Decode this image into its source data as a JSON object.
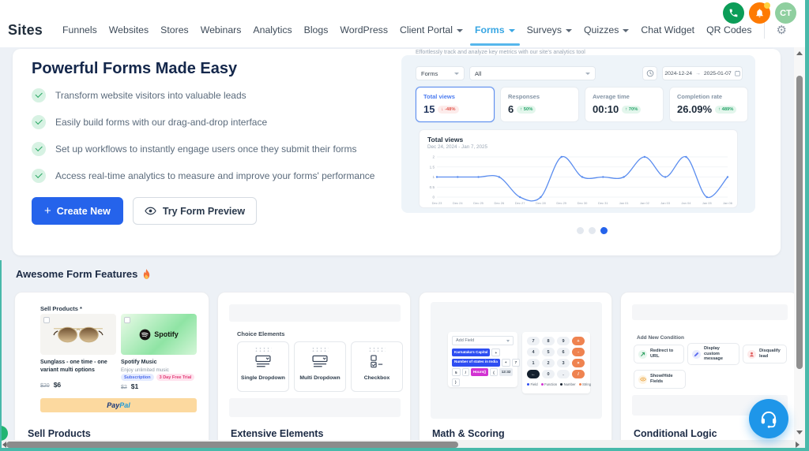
{
  "colors": {
    "accent_blue": "#2563eb",
    "nav_active": "#38a6e3",
    "teal_edge": "#49b9aa",
    "positive": "#27a46a",
    "negative": "#e25950",
    "chart_line": "#5b8def",
    "support_fab": "#1e96e9"
  },
  "icons": {
    "settings_gear": "⚙",
    "create_plus": "+",
    "date_arrow": "→"
  },
  "header": {
    "brand": "Sites",
    "avatar_initials": "CT",
    "nav": [
      {
        "label": "Funnels"
      },
      {
        "label": "Websites"
      },
      {
        "label": "Stores"
      },
      {
        "label": "Webinars"
      },
      {
        "label": "Analytics"
      },
      {
        "label": "Blogs"
      },
      {
        "label": "WordPress"
      },
      {
        "label": "Client Portal",
        "dropdown": true
      },
      {
        "label": "Forms",
        "dropdown": true,
        "active": true
      },
      {
        "label": "Surveys",
        "dropdown": true
      },
      {
        "label": "Quizzes",
        "dropdown": true
      },
      {
        "label": "Chat Widget"
      },
      {
        "label": "QR Codes"
      }
    ]
  },
  "hero": {
    "title": "Powerful Forms Made Easy",
    "bullets": [
      "Transform website visitors into valuable leads",
      "Easily build forms with our drag-and-drop interface",
      "Set up workflows to instantly engage users once they submit their forms",
      "Access real-time analytics to measure and improve your forms' performance"
    ],
    "create_button": "Create New",
    "preview_button": "Try Form Preview"
  },
  "analytics": {
    "tagline": "Effortlessly track and analyze key metrics with our site's analytics tool",
    "filters": {
      "type_value": "Forms",
      "scope_value": "All"
    },
    "date_range": {
      "from": "2024-12-24",
      "to": "2025-01-07"
    },
    "stats": [
      {
        "label": "Total views",
        "value": "15",
        "delta": "↓ -48%",
        "trend": "down",
        "active": true
      },
      {
        "label": "Responses",
        "value": "6",
        "delta": "↑ 50%",
        "trend": "up"
      },
      {
        "label": "Average time",
        "value": "00:10",
        "delta": "↑ 70%",
        "trend": "up"
      },
      {
        "label": "Completion rate",
        "value": "26.09%",
        "delta": "↑ 489%",
        "trend": "up"
      }
    ]
  },
  "chart_data": {
    "type": "line",
    "title": "Total views",
    "subtitle": "Dec 24, 2024 - Jan 7, 2025",
    "x": [
      "Dec 23",
      "Dec 24",
      "Dec 25",
      "Dec 26",
      "Dec 27",
      "Dec 28",
      "Dec 29",
      "Dec 30",
      "Dec 31",
      "Jan 01",
      "Jan 02",
      "Jan 03",
      "Jan 04",
      "Jan 05",
      "Jan 06"
    ],
    "values": [
      1,
      1,
      1,
      1,
      0,
      0,
      2,
      1,
      1,
      1,
      2,
      1,
      2,
      0,
      1
    ],
    "xlabel": "",
    "ylabel": "",
    "ylim": [
      0,
      2
    ],
    "yticks": [
      0,
      0.5,
      1,
      1.5,
      2
    ],
    "grid": true,
    "legend": "none",
    "line_color": "#5b8def"
  },
  "pagination": {
    "dots": 3,
    "active_index": 2
  },
  "features": {
    "heading": "Awesome Form Features",
    "cards": [
      {
        "title": "Sell Products",
        "field_label": "Sell Products *",
        "products": [
          {
            "name": "Sunglass - one time - one variant multi options",
            "old_price": "$20",
            "price": "$6"
          },
          {
            "name": "Spotify Music",
            "brand": "Spotify",
            "description": "Enjoy unlimited music",
            "badges": [
              "Subscription",
              "3 Day Free Trial"
            ],
            "old_price": "$2",
            "price": "$1"
          }
        ],
        "pay_button": {
          "prefix": "Pay",
          "suffix": "Pal"
        }
      },
      {
        "title": "Extensive Elements",
        "group_label": "Choice Elements",
        "elements": [
          "Single Dropdown",
          "Multi Dropdown",
          "Checkbox"
        ]
      },
      {
        "title": "Math & Scoring",
        "add_field_label": "Add Field",
        "formula_rows": [
          [
            {
              "t": "Karnataka's Capital",
              "k": "field"
            },
            {
              "t": "+",
              "k": "op"
            }
          ],
          [
            {
              "t": "Number of states in India",
              "k": "field"
            },
            {
              "t": "+",
              "k": "op"
            },
            {
              "t": "7",
              "k": "num"
            }
          ],
          [
            {
              "t": "5",
              "k": "num"
            },
            {
              "t": "/",
              "k": "op"
            },
            {
              "t": "Hours()",
              "k": "func"
            },
            {
              "t": "(",
              "k": "op"
            },
            {
              "t": "12:32",
              "k": "str"
            }
          ],
          [
            {
              "t": ")",
              "k": "op"
            }
          ]
        ],
        "keypad": [
          [
            "7",
            "8",
            "9",
            "+"
          ],
          [
            "4",
            "5",
            "6",
            "-"
          ],
          [
            "1",
            "2",
            "3",
            "×"
          ],
          [
            "←",
            "0",
            ".",
            "/"
          ]
        ],
        "legend": [
          {
            "label": "Field",
            "color": "#2e4ef2"
          },
          {
            "label": "Function",
            "color": "#d233d2"
          },
          {
            "label": "Number",
            "color": "#14202e"
          },
          {
            "label": "String",
            "color": "#ef8350"
          }
        ]
      },
      {
        "title": "Conditional Logic",
        "label": "Add New Condition",
        "actions": [
          "Redirect to URL",
          "Display custom message",
          "Disqualify lead",
          "Show/Hide Fields"
        ]
      }
    ]
  }
}
